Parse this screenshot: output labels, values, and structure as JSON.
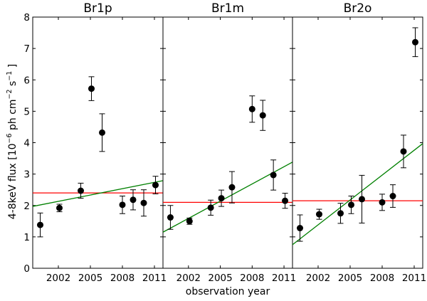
{
  "chart_data": {
    "type": "scatter",
    "ylabel": "4-8keV flux [10^{-6} ph cm^{-2} s^{-1}]",
    "ylabel_parts": {
      "prefix": "4-8keV flux [10",
      "exp1": "−6",
      "mid": " ph cm",
      "exp2": "−2",
      "mid2": " s",
      "exp3": "−1",
      "suffix": " ]"
    },
    "xlabel": "observation year",
    "ylim": [
      0,
      8
    ],
    "xlim": [
      1999.6,
      2011.8
    ],
    "yticks": [
      0,
      1,
      2,
      3,
      4,
      5,
      6,
      7,
      8
    ],
    "xticks": [
      {
        "value": 2002,
        "label": "2002"
      },
      {
        "value": 2005,
        "label": "2005"
      },
      {
        "value": 2008,
        "label": "2008"
      },
      {
        "value": 2011,
        "label": "2011"
      }
    ],
    "colors": {
      "points": "#000000",
      "mean_line": "#ff0000",
      "fit_line": "#008000"
    },
    "panels": [
      {
        "title": "Br1p",
        "points": [
          {
            "x": 2000.3,
            "y": 1.38,
            "err": 0.38
          },
          {
            "x": 2002.1,
            "y": 1.92,
            "err": 0.12
          },
          {
            "x": 2004.1,
            "y": 2.47,
            "err": 0.24
          },
          {
            "x": 2005.1,
            "y": 5.72,
            "err": 0.38
          },
          {
            "x": 2006.1,
            "y": 4.32,
            "err": 0.6
          },
          {
            "x": 2008.0,
            "y": 2.02,
            "err": 0.28
          },
          {
            "x": 2009.0,
            "y": 2.18,
            "err": 0.32
          },
          {
            "x": 2010.0,
            "y": 2.08,
            "err": 0.42
          },
          {
            "x": 2011.1,
            "y": 2.65,
            "err": 0.28
          }
        ],
        "mean": 2.4,
        "fit": {
          "y_start": 1.97,
          "y_end": 2.79
        }
      },
      {
        "title": "Br1m",
        "points": [
          {
            "x": 2000.3,
            "y": 1.62,
            "err": 0.38
          },
          {
            "x": 2002.1,
            "y": 1.5,
            "err": 0.1
          },
          {
            "x": 2004.1,
            "y": 1.93,
            "err": 0.24
          },
          {
            "x": 2005.1,
            "y": 2.23,
            "err": 0.26
          },
          {
            "x": 2006.1,
            "y": 2.58,
            "err": 0.5
          },
          {
            "x": 2008.0,
            "y": 5.07,
            "err": 0.42
          },
          {
            "x": 2009.0,
            "y": 4.87,
            "err": 0.48
          },
          {
            "x": 2010.0,
            "y": 2.97,
            "err": 0.48
          },
          {
            "x": 2011.1,
            "y": 2.15,
            "err": 0.24
          }
        ],
        "mean": 2.1,
        "fit": {
          "y_start": 1.15,
          "y_end": 3.38
        }
      },
      {
        "title": "Br2o",
        "points": [
          {
            "x": 2000.3,
            "y": 1.28,
            "err": 0.42
          },
          {
            "x": 2002.1,
            "y": 1.72,
            "err": 0.16
          },
          {
            "x": 2004.1,
            "y": 1.75,
            "err": 0.32
          },
          {
            "x": 2005.1,
            "y": 2.02,
            "err": 0.28
          },
          {
            "x": 2006.1,
            "y": 2.2,
            "err": 0.76
          },
          {
            "x": 2008.0,
            "y": 2.1,
            "err": 0.26
          },
          {
            "x": 2009.0,
            "y": 2.3,
            "err": 0.36
          },
          {
            "x": 2010.0,
            "y": 3.72,
            "err": 0.52
          },
          {
            "x": 2011.1,
            "y": 7.2,
            "err": 0.46
          }
        ],
        "mean": 2.15,
        "fit": {
          "y_start": 0.75,
          "y_end": 3.97
        }
      }
    ]
  }
}
